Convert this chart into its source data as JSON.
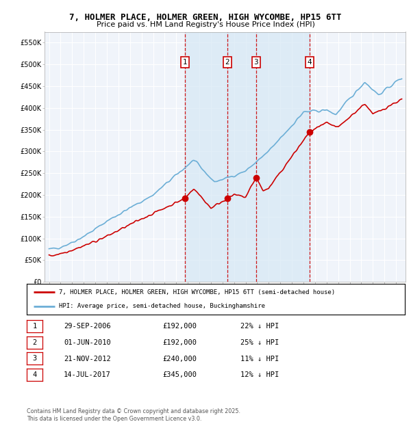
{
  "title": "7, HOLMER PLACE, HOLMER GREEN, HIGH WYCOMBE, HP15 6TT",
  "subtitle": "Price paid vs. HM Land Registry's House Price Index (HPI)",
  "hpi_label": "HPI: Average price, semi-detached house, Buckinghamshire",
  "property_label": "7, HOLMER PLACE, HOLMER GREEN, HIGH WYCOMBE, HP15 6TT (semi-detached house)",
  "ylim": [
    0,
    575000
  ],
  "yticks": [
    0,
    50000,
    100000,
    150000,
    200000,
    250000,
    300000,
    350000,
    400000,
    450000,
    500000,
    550000
  ],
  "ytick_labels": [
    "£0",
    "£50K",
    "£100K",
    "£150K",
    "£200K",
    "£250K",
    "£300K",
    "£350K",
    "£400K",
    "£450K",
    "£500K",
    "£550K"
  ],
  "hpi_color": "#6baed6",
  "property_color": "#cc0000",
  "vline_color": "#cc0000",
  "shade_color": "#d6e8f5",
  "transactions": [
    {
      "label": "1",
      "date_x": 2006.75,
      "price": 192000,
      "pct": "22%",
      "date_str": "29-SEP-2006"
    },
    {
      "label": "2",
      "date_x": 2010.42,
      "price": 192000,
      "pct": "25%",
      "date_str": "01-JUN-2010"
    },
    {
      "label": "3",
      "date_x": 2012.9,
      "price": 240000,
      "pct": "11%",
      "date_str": "21-NOV-2012"
    },
    {
      "label": "4",
      "date_x": 2017.54,
      "price": 345000,
      "pct": "12%",
      "date_str": "14-JUL-2017"
    }
  ],
  "footer": "Contains HM Land Registry data © Crown copyright and database right 2025.\nThis data is licensed under the Open Government Licence v3.0.",
  "plot_bg": "#f0f4fa",
  "grid_color": "#ffffff",
  "xlim_start": 1994.6,
  "xlim_end": 2025.8
}
